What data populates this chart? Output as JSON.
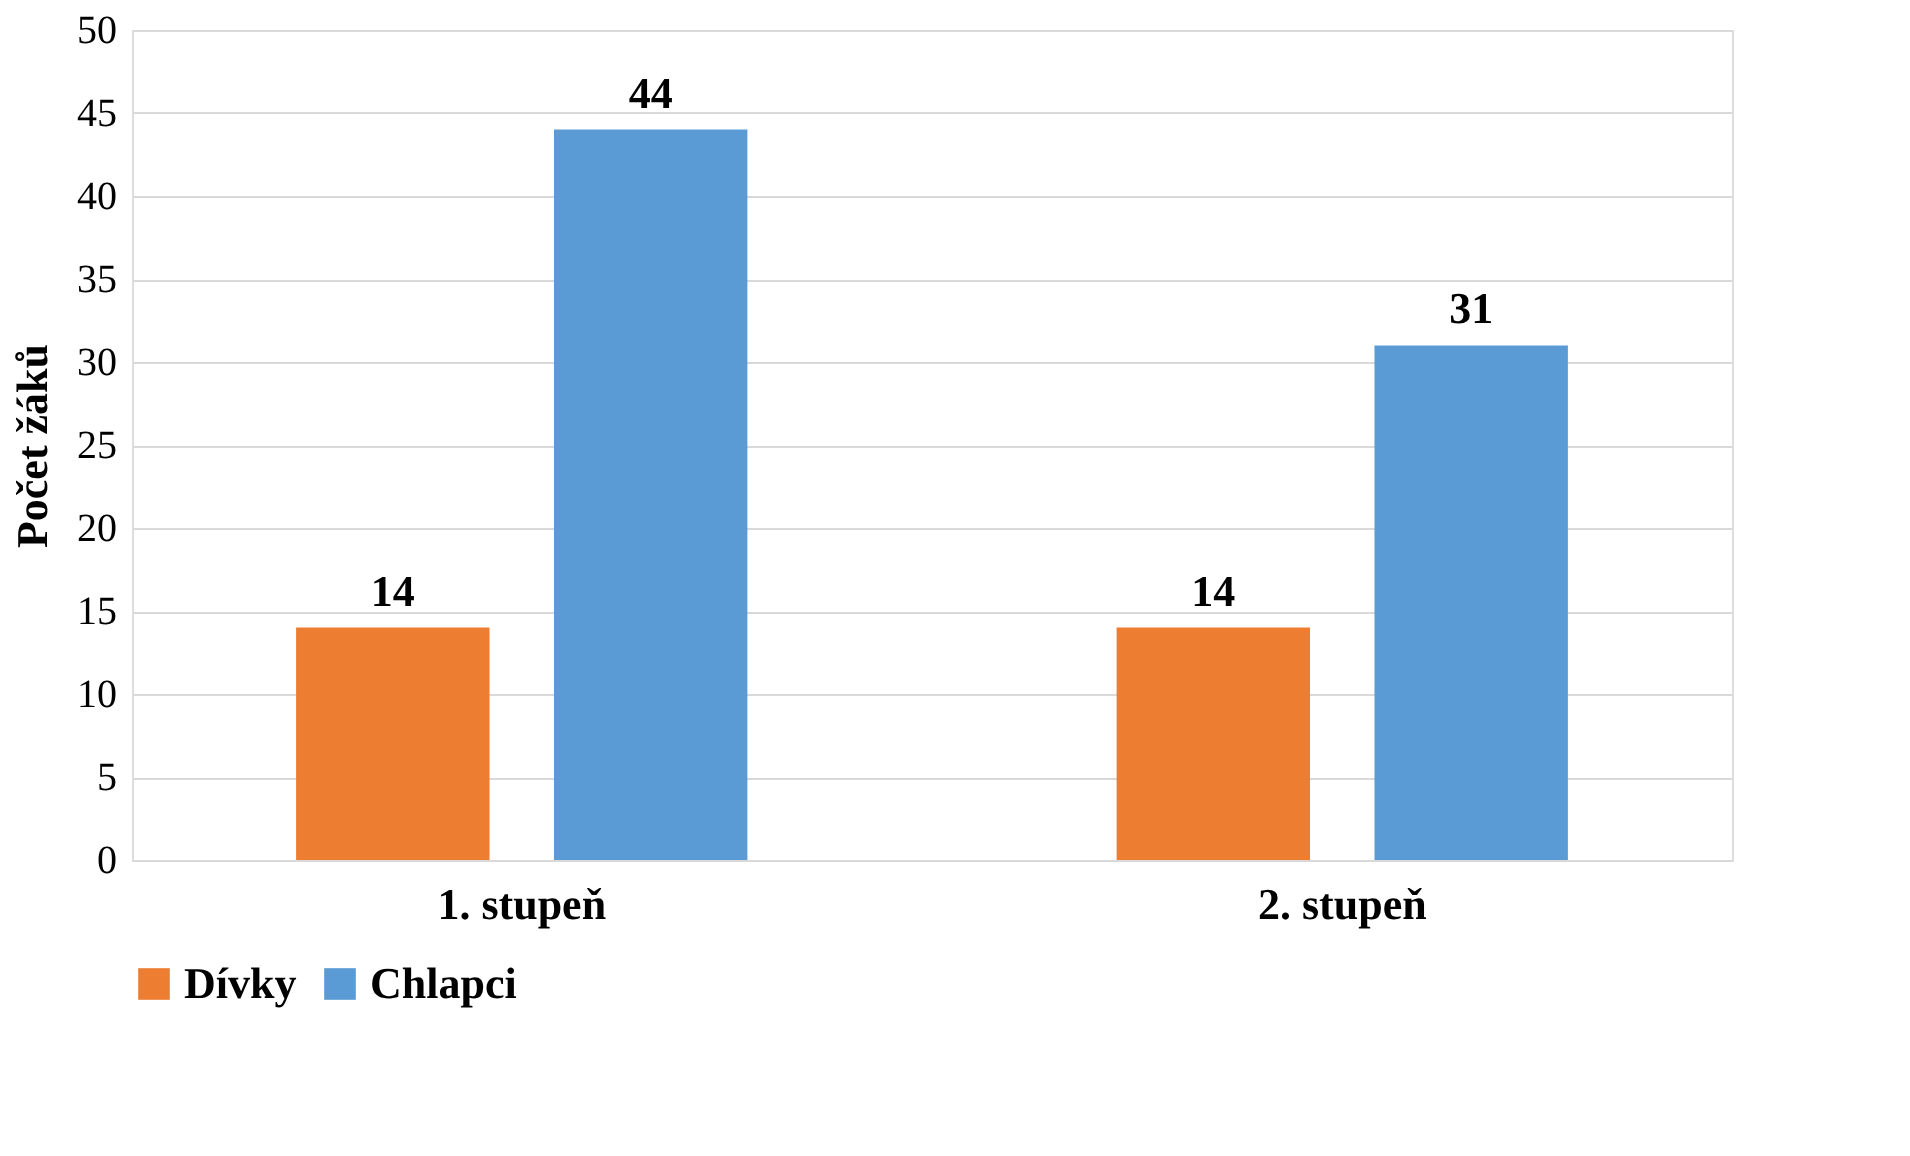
{
  "chart_data": {
    "type": "bar",
    "categories": [
      "1. stupeň",
      "2. stupeň"
    ],
    "series": [
      {
        "name": "Dívky",
        "color": "#ed7d31",
        "values": [
          14,
          14
        ]
      },
      {
        "name": "Chlapci",
        "color": "#5b9bd5",
        "values": [
          44,
          31
        ]
      }
    ],
    "ylabel": "Počet žáků",
    "ylim": [
      0,
      50
    ],
    "yticks": [
      0,
      5,
      10,
      15,
      20,
      25,
      30,
      35,
      40,
      45,
      50
    ],
    "grid": "y",
    "legend": "bottom",
    "data_labels": true
  }
}
